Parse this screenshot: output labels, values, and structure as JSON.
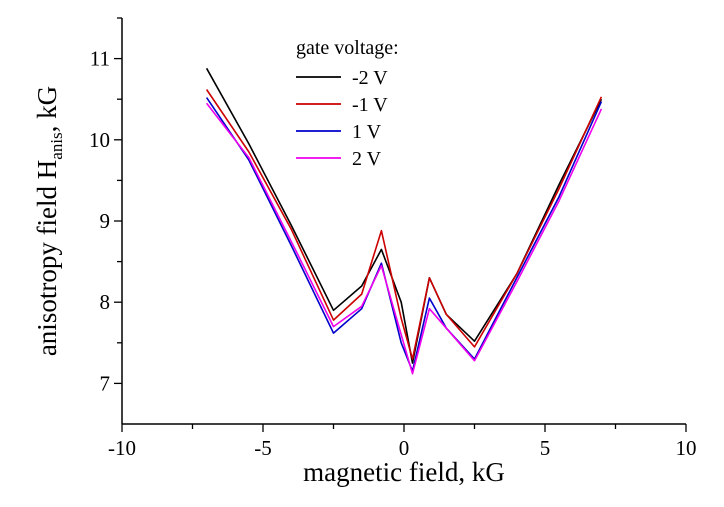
{
  "chart_data": {
    "type": "line",
    "title": "",
    "xlabel": "magnetic field, kG",
    "ylabel": {
      "main": "anisotropy field H",
      "subscript": "anis",
      "suffix": ", kG"
    },
    "xlim": [
      -10,
      10
    ],
    "ylim": [
      6.5,
      11.5
    ],
    "xticks": [
      -10,
      -5,
      0,
      5,
      10
    ],
    "yticks": [
      7,
      8,
      9,
      10,
      11
    ],
    "grid": false,
    "legend": {
      "title": "gate voltage:",
      "placement": "top-center"
    },
    "series": [
      {
        "name": "-2 V",
        "color": "#000000",
        "x": [
          -7,
          -5.5,
          -4,
          -2.5,
          -1.5,
          -0.8,
          -0.1,
          0.3,
          0.9,
          1.5,
          2.5,
          4,
          5.5,
          7
        ],
        "y": [
          10.88,
          9.95,
          8.95,
          7.9,
          8.2,
          8.65,
          8.0,
          7.25,
          8.3,
          7.85,
          7.52,
          8.35,
          9.45,
          10.5
        ]
      },
      {
        "name": "-1 V",
        "color": "#cc0000",
        "x": [
          -7,
          -5.5,
          -4,
          -2.5,
          -1.5,
          -0.8,
          -0.1,
          0.3,
          0.9,
          1.5,
          2.5,
          4,
          5.5,
          7
        ],
        "y": [
          10.62,
          9.85,
          8.9,
          7.78,
          8.1,
          8.88,
          7.8,
          7.3,
          8.3,
          7.85,
          7.45,
          8.35,
          9.4,
          10.53
        ]
      },
      {
        "name": "1 V",
        "color": "#0000cc",
        "x": [
          -7,
          -5.5,
          -4,
          -2.5,
          -1.5,
          -0.8,
          -0.1,
          0.3,
          0.9,
          1.5,
          2.5,
          4,
          5.5,
          7
        ],
        "y": [
          10.52,
          9.75,
          8.7,
          7.62,
          7.92,
          8.48,
          7.5,
          7.15,
          8.05,
          7.68,
          7.3,
          8.3,
          9.3,
          10.47
        ]
      },
      {
        "name": "2 V",
        "color": "#ee00ee",
        "x": [
          -7,
          -5.5,
          -4,
          -2.5,
          -1.5,
          -0.8,
          -0.1,
          0.3,
          0.9,
          1.5,
          2.5,
          4,
          5.5,
          7
        ],
        "y": [
          10.45,
          9.78,
          8.75,
          7.7,
          7.95,
          8.45,
          7.6,
          7.12,
          7.92,
          7.68,
          7.28,
          8.25,
          9.25,
          10.38
        ]
      }
    ]
  }
}
